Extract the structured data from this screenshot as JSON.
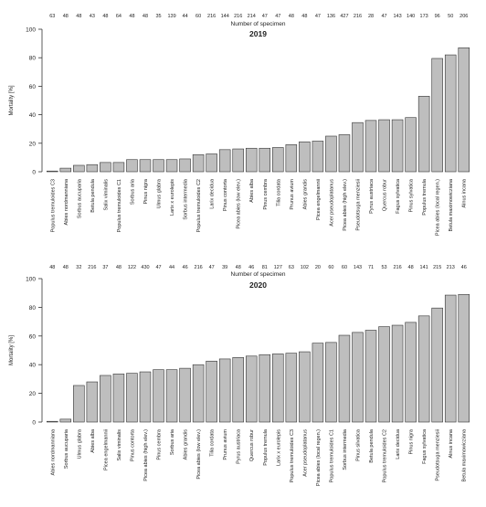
{
  "chart_data": [
    {
      "type": "bar",
      "title": "2019",
      "top_axis_label": "Number of specimen",
      "ylabel": "Mortality [%]",
      "ylim": [
        0,
        100
      ],
      "yticks": [
        0,
        20,
        40,
        60,
        80,
        100
      ],
      "bar_color": "#bebebe",
      "categories": [
        "Populus tremuloides C3",
        "Abies nordmanniana",
        "Sorbus aucuparia",
        "Betula pendula",
        "Salix viminalis",
        "Populus tremuloides C1",
        "Sorbus aria",
        "Pinus nigra",
        "Ulmus glabra",
        "Larix x eurolepis",
        "Sorbus intermedia",
        "Populus tremuloides C2",
        "Larix decidua",
        "Pinus contorta",
        "Picea abies (low elev.)",
        "Abies alba",
        "Pinus cembra",
        "Tilia cordata",
        "Prunus avium",
        "Abies grandis",
        "Picea engelmannii",
        "Acer pseudoplatanus",
        "Picea abies (high elev.)",
        "Pseudotsuga menziesii",
        "Pyrus austriaca",
        "Quercus robur",
        "Fagus sylvatica",
        "Pinus sylvatica",
        "Populus tremula",
        "Picea abies (local regen.)",
        "Betula maximowicziana",
        "Alnus incana"
      ],
      "specimen_counts": [
        "63",
        "48",
        "48",
        "43",
        "48",
        "64",
        "48",
        "48",
        "35",
        "139",
        "44",
        "60",
        "216",
        "144",
        "216",
        "214",
        "47",
        "47",
        "48",
        "48",
        "47",
        "136",
        "427",
        "216",
        "28",
        "47",
        "143",
        "140",
        "173",
        "96",
        "50",
        "206"
      ],
      "values": [
        0.5,
        2.5,
        4.5,
        5,
        6.5,
        6.5,
        8.5,
        8.5,
        8.5,
        8.5,
        9,
        12,
        12.5,
        15.5,
        16,
        16.5,
        16.5,
        17,
        19,
        21,
        21.5,
        25,
        26,
        34.5,
        36,
        36.5,
        36.5,
        38,
        53,
        79.5,
        82,
        87
      ]
    },
    {
      "type": "bar",
      "title": "2020",
      "top_axis_label": "Number of specimen",
      "ylabel": "Mortality [%]",
      "ylim": [
        0,
        100
      ],
      "yticks": [
        0,
        20,
        40,
        60,
        80,
        100
      ],
      "bar_color": "#bebebe",
      "categories": [
        "Abies nordmanniana",
        "Sorbus aucuparia",
        "Ulmus glabra",
        "Abies alba",
        "Picea engelmannii",
        "Salix viminalis",
        "Pinus contorta",
        "Picea abies (high elev.)",
        "Pinus cembra",
        "Sorbus aria",
        "Abies grandis",
        "Picea abies (low elev.)",
        "Tilia cordata",
        "Prunus avium",
        "Pyrus austriaca",
        "Quercus robur",
        "Populus tremula",
        "Larix x eurolepis",
        "Populus tremuloides C3",
        "Acer pseudoplatanus",
        "Picea abies (local regen.)",
        "Populus tremuloides C1",
        "Sorbus intermedia",
        "Pinus silvatica",
        "Betula pendula",
        "Populus tremuloides C2",
        "Larix decidua",
        "Pinus nigra",
        "Fagus sylvatica",
        "Pseudotsuga menziesii",
        "Alnus incana",
        "Betula maximowicziana"
      ],
      "specimen_counts": [
        "48",
        "48",
        "32",
        "216",
        "37",
        "48",
        "122",
        "430",
        "47",
        "44",
        "46",
        "216",
        "47",
        "39",
        "48",
        "46",
        "81",
        "127",
        "63",
        "102",
        "20",
        "60",
        "60",
        "143",
        "71",
        "53",
        "216",
        "48",
        "141",
        "215",
        "213",
        "46"
      ],
      "values": [
        0.5,
        2,
        25.5,
        28,
        32.5,
        33.5,
        34,
        35,
        36.5,
        36.5,
        37.5,
        40,
        42.5,
        44,
        45,
        46,
        47,
        47.5,
        48,
        49,
        55,
        55.5,
        60.5,
        62.5,
        64,
        66.5,
        67.5,
        69.5,
        74,
        79.5,
        88.5,
        89
      ]
    }
  ]
}
